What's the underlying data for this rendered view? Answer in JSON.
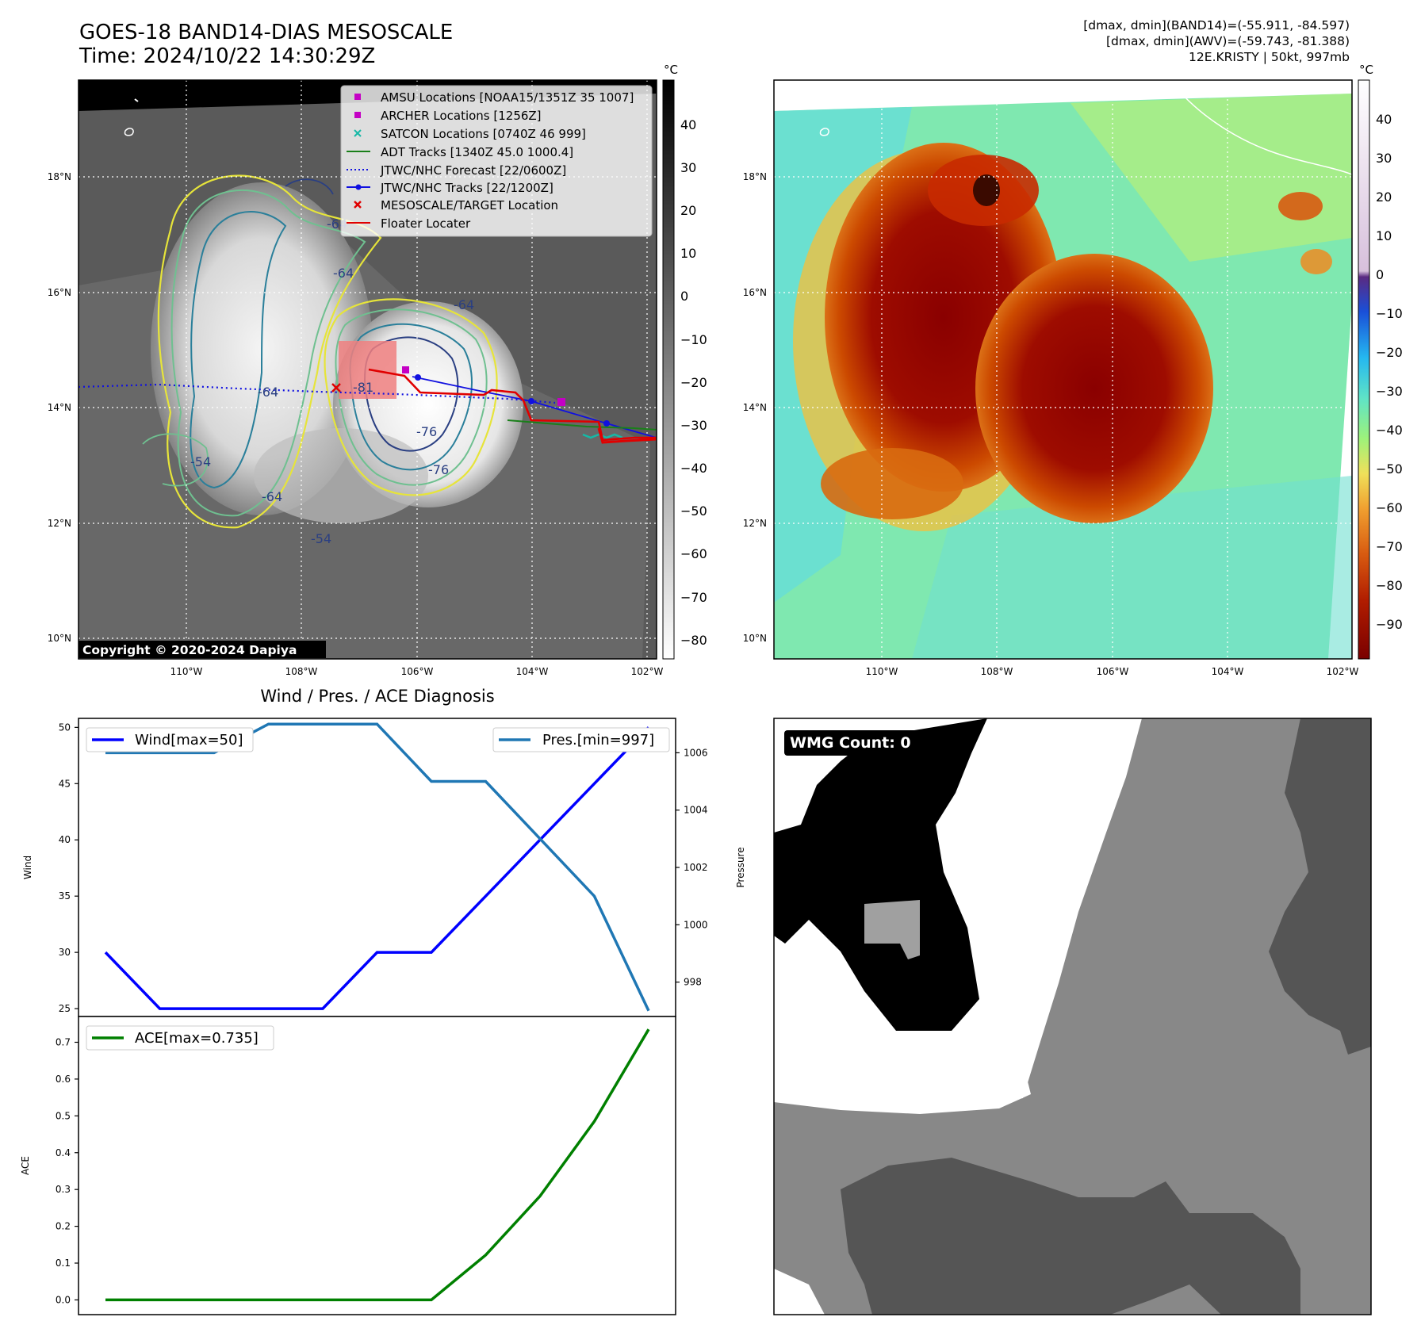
{
  "header": {
    "title_line1": "GOES-18 BAND14-DIAS MESOSCALE",
    "title_line2": "Time: 2024/10/22 14:30:29Z",
    "info_line1": "[dmax, dmin](BAND14)=(-55.911, -84.597)",
    "info_line2": "[dmax, dmin](AWV)=(-59.743, -81.388)",
    "info_line3": "12E.KRISTY | 50kt, 997mb"
  },
  "map": {
    "lon_ticks": [
      "110°W",
      "108°W",
      "106°W",
      "104°W",
      "102°W"
    ],
    "lat_ticks": [
      "18°N",
      "16°N",
      "14°N",
      "12°N",
      "10°N"
    ],
    "copyright": "Copyright © 2020-2024 Dapiya",
    "contour_labels": [
      "-64",
      "-64",
      "-64",
      "-54",
      "-64",
      "-81",
      "-76",
      "-76",
      "-54",
      "-64"
    ],
    "legend": [
      {
        "label": "AMSU Locations [NOAA15/1351Z 35 1007]",
        "symbol": "square",
        "color": "#c400c4"
      },
      {
        "label": "ARCHER Locations [1256Z]",
        "symbol": "square",
        "color": "#c400c4"
      },
      {
        "label": "SATCON Locations [0740Z 46 999]",
        "symbol": "x",
        "color": "#16b8a6"
      },
      {
        "label": "ADT Tracks [1340Z 45.0 1000.4]",
        "symbol": "line",
        "color": "#1a7f1a"
      },
      {
        "label": "JTWC/NHC Forecast [22/0600Z]",
        "symbol": "dotted",
        "color": "#1010e0"
      },
      {
        "label": "JTWC/NHC Tracks [22/1200Z]",
        "symbol": "line-dot",
        "color": "#1010e0"
      },
      {
        "label": "MESOSCALE/TARGET Location",
        "symbol": "x",
        "color": "#e00000"
      },
      {
        "label": "Floater Locater",
        "symbol": "line",
        "color": "#e00000"
      }
    ]
  },
  "colorbar_left": {
    "unit": "°C",
    "ticks": [
      "40",
      "30",
      "20",
      "10",
      "0",
      "−10",
      "−20",
      "−30",
      "−40",
      "−50",
      "−60",
      "−70",
      "−80"
    ]
  },
  "colorbar_right": {
    "unit": "°C",
    "ticks": [
      "40",
      "30",
      "20",
      "10",
      "0",
      "−10",
      "−20",
      "−30",
      "−40",
      "−50",
      "−60",
      "−70",
      "−80",
      "−90"
    ]
  },
  "wmg": {
    "label": "WMG Count: 0"
  },
  "chart_data": [
    {
      "type": "line",
      "title": "Wind / Pres. / ACE Diagnosis",
      "ylabel": "Wind",
      "ylim": [
        24.3,
        50.8
      ],
      "yticks": [
        "25",
        "30",
        "35",
        "40",
        "45",
        "50"
      ],
      "series": [
        {
          "name": "Wind[max=50]",
          "color": "#0000ff",
          "values": [
            30,
            25,
            25,
            25,
            25,
            30,
            30,
            35,
            40,
            45,
            50
          ]
        }
      ]
    },
    {
      "type": "line",
      "ylabel": "Pressure",
      "ylim": [
        996.8,
        1007.2
      ],
      "yticks": [
        "998",
        "1000",
        "1002",
        "1004",
        "1006"
      ],
      "series": [
        {
          "name": "Pres.[min=997]",
          "color": "#1f77b4",
          "values": [
            1006,
            1006,
            1006,
            1007,
            1007,
            1007,
            1005,
            1005,
            1003,
            1001,
            997
          ]
        }
      ]
    },
    {
      "type": "line",
      "ylabel": "ACE",
      "ylim": [
        -0.04,
        0.77
      ],
      "yticks": [
        "0.0",
        "0.1",
        "0.2",
        "0.3",
        "0.4",
        "0.5",
        "0.6",
        "0.7"
      ],
      "series": [
        {
          "name": "ACE[max=0.735]",
          "color": "#008000",
          "values": [
            0.0,
            0.0,
            0.0,
            0.0,
            0.0,
            0.0,
            0.0,
            0.122,
            0.282,
            0.485,
            0.735
          ]
        }
      ]
    }
  ]
}
